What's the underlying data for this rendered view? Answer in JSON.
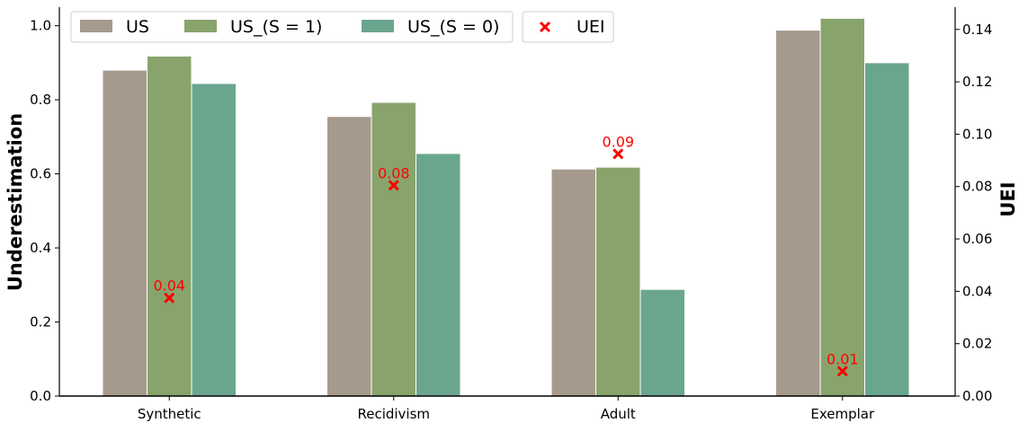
{
  "chart_data": {
    "type": "bar",
    "categories": [
      "Synthetic",
      "Recidivism",
      "Adult",
      "Exemplar"
    ],
    "series": [
      {
        "name": "US",
        "values": [
          0.88,
          0.755,
          0.613,
          0.988
        ],
        "color": "#a69a8e"
      },
      {
        "name": "US_(S = 1)",
        "values": [
          0.918,
          0.793,
          0.618,
          1.02
        ],
        "color": "#88a46c"
      },
      {
        "name": "US_(S = 0)",
        "values": [
          0.844,
          0.655,
          0.288,
          0.9
        ],
        "color": "#6aa68e"
      }
    ],
    "secondary_series": {
      "name": "UEI",
      "type": "scatter",
      "marker": "x",
      "color": "#ff0000",
      "values": [
        0.0375,
        0.0805,
        0.0925,
        0.0095
      ],
      "labels": [
        "0.04",
        "0.08",
        "0.09",
        "0.01"
      ]
    },
    "ylabel": "Underestimation",
    "y2label": "UEI",
    "ylim": [
      0,
      1.05
    ],
    "y2lim": [
      0,
      0.1485
    ],
    "yticks": [
      "0.0",
      "0.2",
      "0.4",
      "0.6",
      "0.8",
      "1.0"
    ],
    "y2ticks": [
      "0.00",
      "0.02",
      "0.04",
      "0.06",
      "0.08",
      "0.10",
      "0.12",
      "0.14"
    ],
    "grid": false,
    "legend_placement": "top-left"
  }
}
